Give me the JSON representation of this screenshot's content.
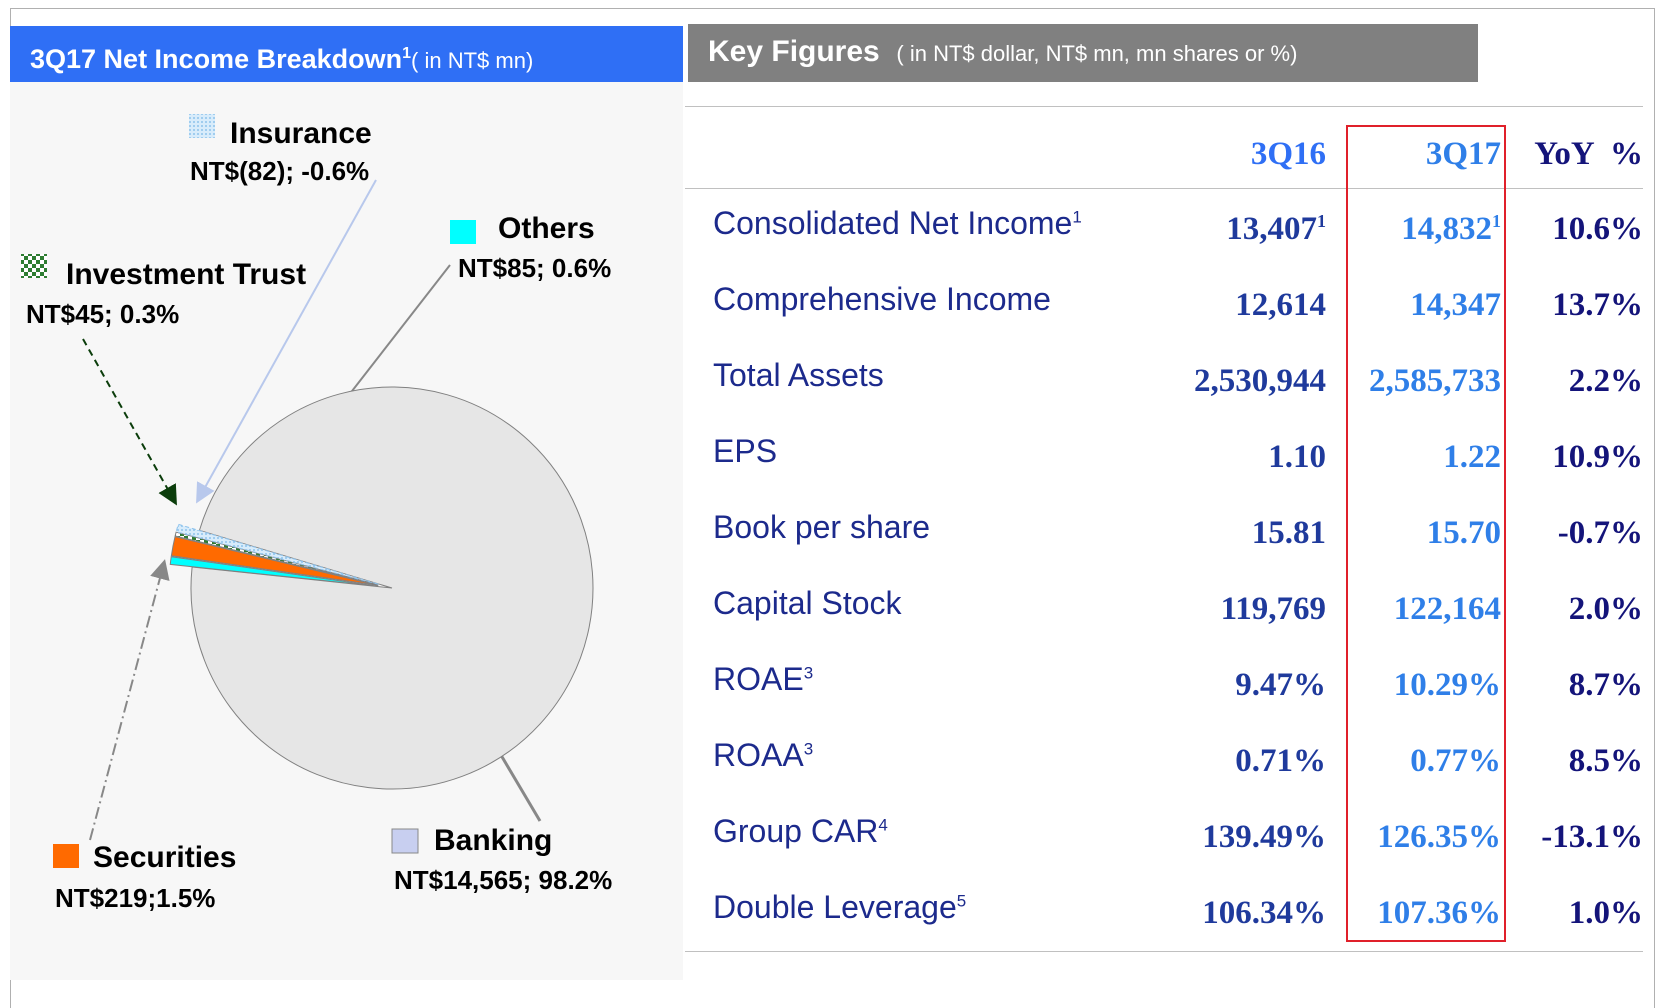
{
  "chart_data": {
    "type": "pie",
    "title": "3Q17 Net Income Breakdown",
    "title_sup": "1",
    "subtitle": "( in NT$ mn)",
    "categories": [
      "Banking",
      "Others",
      "Securities",
      "Investment Trust",
      "Insurance"
    ],
    "values": [
      98.2,
      0.6,
      1.5,
      0.3,
      -0.6
    ],
    "value_labels": [
      "NT$14,565; 98.2%",
      "NT$85; 0.6%",
      "NT$219;1.5%",
      "NT$45; 0.3%",
      "NT$(82); -0.6%"
    ],
    "colors": [
      "#e6e6e6",
      "#00ffff",
      "#ff6a00",
      "#2e7d32",
      "#a8d0f0"
    ]
  },
  "key_figures": {
    "title": "Key Figures",
    "subtitle": "( in NT$ dollar, NT$ mn, mn shares or %)",
    "columns": [
      "3Q16",
      "3Q17",
      "YoY  %"
    ],
    "rows": [
      {
        "label": "Consolidated Net Income",
        "label_sup": "1",
        "cells": [
          {
            "text": "13,407",
            "sup": "1"
          },
          {
            "text": "14,832",
            "sup": "1"
          },
          {
            "text": "10.6%"
          }
        ]
      },
      {
        "label": "Comprehensive Income",
        "cells": [
          {
            "text": "12,614"
          },
          {
            "text": "14,347"
          },
          {
            "text": "13.7%"
          }
        ]
      },
      {
        "label": "Total Assets",
        "cells": [
          {
            "text": "2,530,944"
          },
          {
            "text": "2,585,733"
          },
          {
            "text": "2.2%"
          }
        ]
      },
      {
        "label": "EPS",
        "cells": [
          {
            "text": "1.10"
          },
          {
            "text": "1.22"
          },
          {
            "text": "10.9%"
          }
        ]
      },
      {
        "label": "Book per share",
        "cells": [
          {
            "text": "15.81"
          },
          {
            "text": "15.70"
          },
          {
            "text": "-0.7%"
          }
        ]
      },
      {
        "label": "Capital Stock",
        "cells": [
          {
            "text": "119,769"
          },
          {
            "text": "122,164"
          },
          {
            "text": "2.0%"
          }
        ]
      },
      {
        "label": "ROAE",
        "label_sup": "3",
        "cells": [
          {
            "text": "9.47%"
          },
          {
            "text": "10.29%"
          },
          {
            "text": "8.7%"
          }
        ]
      },
      {
        "label": "ROAA",
        "label_sup": "3",
        "cells": [
          {
            "text": "0.71%"
          },
          {
            "text": "0.77%"
          },
          {
            "text": "8.5%"
          }
        ]
      },
      {
        "label": "Group CAR",
        "label_sup": "4",
        "cells": [
          {
            "text": "139.49%"
          },
          {
            "text": "126.35%"
          },
          {
            "text": "-13.1%"
          }
        ]
      },
      {
        "label": "Double Leverage",
        "label_sup": "5",
        "cells": [
          {
            "text": "106.34%"
          },
          {
            "text": "107.36%"
          },
          {
            "text": "1.0%"
          }
        ]
      }
    ]
  }
}
